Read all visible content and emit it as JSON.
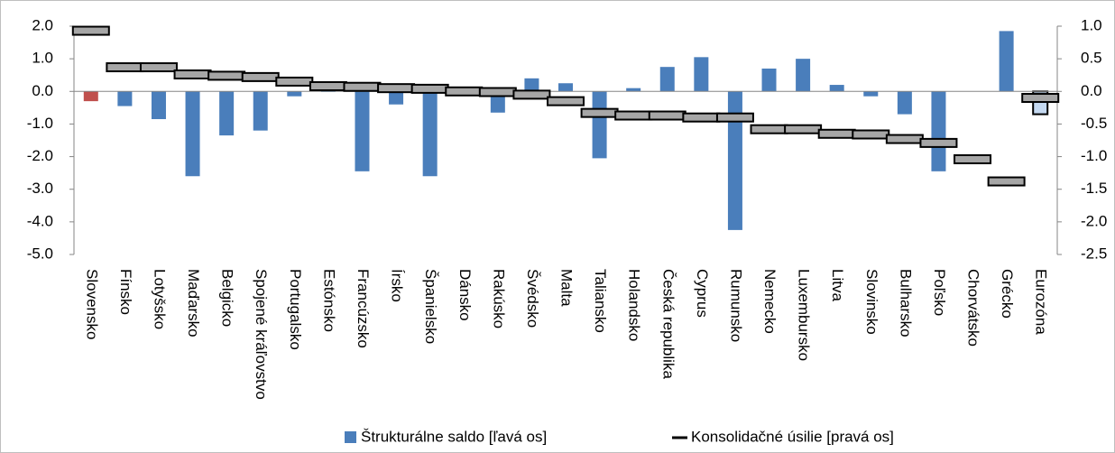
{
  "chart_data": {
    "type": "bar_line",
    "categories": [
      "Slovensko",
      "Fínsko",
      "Lotyšsko",
      "Maďarsko",
      "Belgicko",
      "Spojené kráľovstvo",
      "Portugalsko",
      "Estónsko",
      "Francúzsko",
      "Írsko",
      "Španielsko",
      "Dánsko",
      "Rakúsko",
      "Švédsko",
      "Malta",
      "Taliansko",
      "Holandsko",
      "Česká republika",
      "Cyprus",
      "Rumunsko",
      "Nemecko",
      "Luxembursko",
      "Litva",
      "Slovinsko",
      "Bulharsko",
      "Poľsko",
      "Chorvátsko",
      "Grécko",
      "Eurozóna"
    ],
    "series": [
      {
        "name": "Štrukturálne saldo [ľavá os]",
        "color": "#4a7ebb",
        "axis": "y",
        "bar_colors": {
          "0": "#c0504d",
          "28": "#c5d9f1"
        },
        "values": [
          -0.3,
          -0.45,
          -0.85,
          -2.6,
          -1.35,
          -1.2,
          -0.15,
          -0.02,
          -2.45,
          -0.4,
          -2.6,
          0,
          -0.65,
          0.4,
          0.25,
          -2.05,
          0.1,
          0.75,
          1.05,
          -4.25,
          0.7,
          1.0,
          0.2,
          -0.15,
          -0.7,
          -2.45,
          0,
          1.85,
          -0.7
        ]
      },
      {
        "name": "Konsolidačné úsilie [pravá os]",
        "color": "#a6a6a6",
        "axis": "y2",
        "values": [
          0.93,
          0.37,
          0.37,
          0.26,
          0.24,
          0.22,
          0.15,
          0.08,
          0.07,
          0.05,
          0.04,
          0,
          -0.01,
          -0.05,
          -0.15,
          -0.33,
          -0.37,
          -0.37,
          -0.4,
          -0.4,
          -0.58,
          -0.58,
          -0.65,
          -0.66,
          -0.73,
          -0.79,
          -1.04,
          -1.38,
          -0.1
        ]
      }
    ],
    "ylim": [
      -5,
      2
    ],
    "yticks": [
      {
        "value": 2,
        "label": "2.0"
      },
      {
        "value": 1,
        "label": "1.0"
      },
      {
        "value": 0,
        "label": "0.0"
      },
      {
        "value": -1,
        "label": "-1.0"
      },
      {
        "value": -2,
        "label": "-2.0"
      },
      {
        "value": -3,
        "label": "-3.0"
      },
      {
        "value": -4,
        "label": "-4.0"
      },
      {
        "value": -5,
        "label": "-5.0"
      }
    ],
    "y2lim": [
      -2.5,
      1
    ],
    "y2ticks": [
      {
        "value": 1,
        "label": "1.0"
      },
      {
        "value": 0.5,
        "label": "0.5"
      },
      {
        "value": 0,
        "label": "0.0"
      },
      {
        "value": -0.5,
        "label": "-0.5"
      },
      {
        "value": -1,
        "label": "-1.0"
      },
      {
        "value": -1.5,
        "label": "-1.5"
      },
      {
        "value": -2,
        "label": "-2.0"
      },
      {
        "value": -2.5,
        "label": "-2.5"
      }
    ],
    "legend": "bottom"
  }
}
